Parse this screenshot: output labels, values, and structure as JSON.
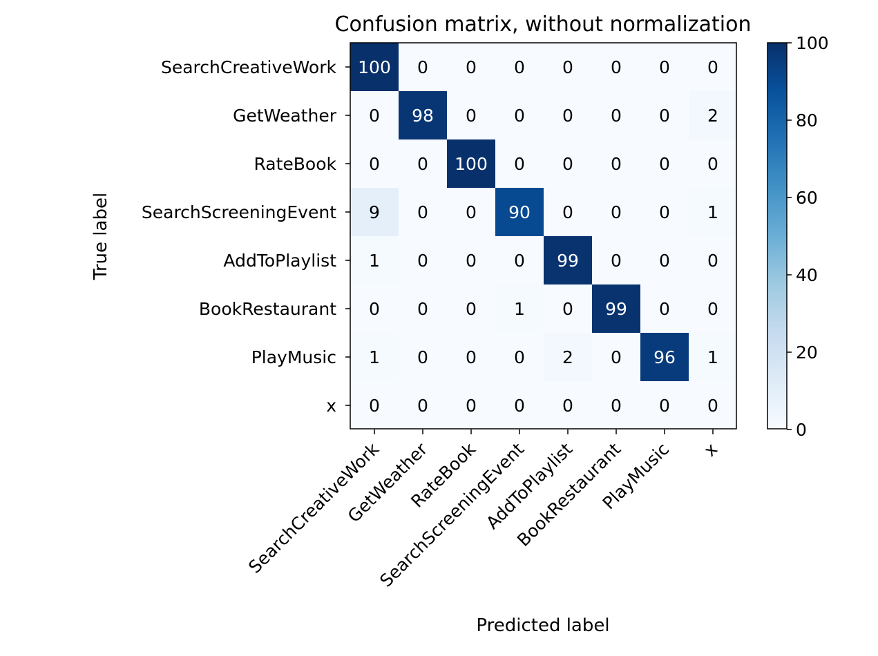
{
  "chart_data": {
    "type": "heatmap",
    "title": "Confusion matrix, without normalization",
    "xlabel": "Predicted label",
    "ylabel": "True label",
    "x_categories": [
      "SearchCreativeWork",
      "GetWeather",
      "RateBook",
      "SearchScreeningEvent",
      "AddToPlaylist",
      "BookRestaurant",
      "PlayMusic",
      "x"
    ],
    "y_categories": [
      "SearchCreativeWork",
      "GetWeather",
      "RateBook",
      "SearchScreeningEvent",
      "AddToPlaylist",
      "BookRestaurant",
      "PlayMusic",
      "x"
    ],
    "values": [
      [
        100,
        0,
        0,
        0,
        0,
        0,
        0,
        0
      ],
      [
        0,
        98,
        0,
        0,
        0,
        0,
        0,
        2
      ],
      [
        0,
        0,
        100,
        0,
        0,
        0,
        0,
        0
      ],
      [
        9,
        0,
        0,
        90,
        0,
        0,
        0,
        1
      ],
      [
        1,
        0,
        0,
        0,
        99,
        0,
        0,
        0
      ],
      [
        0,
        0,
        0,
        1,
        0,
        99,
        0,
        0
      ],
      [
        1,
        0,
        0,
        0,
        2,
        0,
        96,
        1
      ],
      [
        0,
        0,
        0,
        0,
        0,
        0,
        0,
        0
      ]
    ],
    "colormap": "Blues",
    "colorbar": {
      "min": 0,
      "max": 100,
      "ticks": [
        0,
        20,
        40,
        60,
        80,
        100
      ]
    },
    "grid": false
  }
}
